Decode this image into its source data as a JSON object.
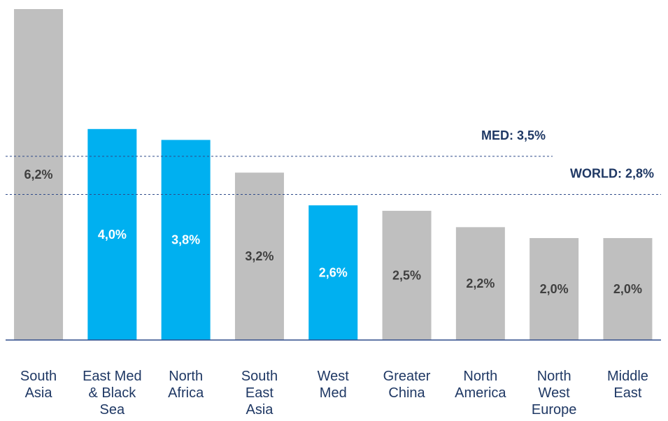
{
  "chart_data": {
    "type": "bar",
    "categories": [
      [
        "South",
        "Asia"
      ],
      [
        "East Med",
        "& Black",
        "Sea"
      ],
      [
        "North",
        "Africa"
      ],
      [
        "South",
        "East",
        "Asia"
      ],
      [
        "West",
        "Med"
      ],
      [
        "Greater",
        "China"
      ],
      [
        "North",
        "America"
      ],
      [
        "North",
        "West",
        "Europe"
      ],
      [
        "Middle",
        "East"
      ]
    ],
    "values": [
      6.2,
      4.0,
      3.8,
      3.2,
      2.6,
      2.5,
      2.2,
      2.0,
      2.0
    ],
    "value_labels": [
      "6,2%",
      "4,0%",
      "3,8%",
      "3,2%",
      "2,6%",
      "2,5%",
      "2,2%",
      "2,0%",
      "2,0%"
    ],
    "colors": [
      "#bfbfbf",
      "#00b0f0",
      "#00b0f0",
      "#bfbfbf",
      "#00b0f0",
      "#bfbfbf",
      "#bfbfbf",
      "#bfbfbf",
      "#bfbfbf"
    ],
    "ylim": [
      0.13,
      6.2
    ],
    "reference_lines": [
      {
        "label": "MED: 3,5%",
        "value": 3.5
      },
      {
        "label": "WORLD: 2,8%",
        "value": 2.8
      }
    ]
  }
}
